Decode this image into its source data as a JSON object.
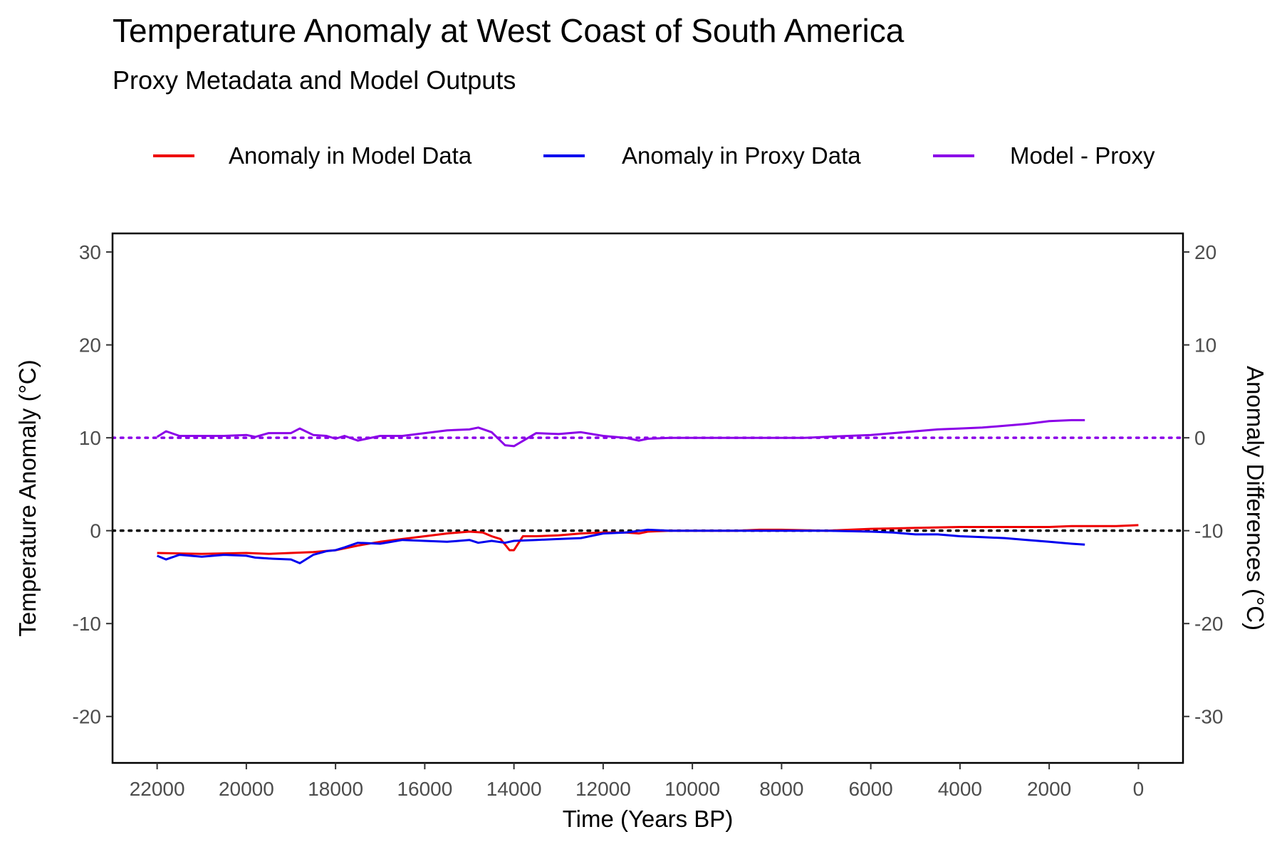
{
  "chart_data": {
    "type": "line",
    "title": "Temperature Anomaly at West Coast of South America",
    "subtitle": "Proxy Metadata and Model Outputs",
    "xlabel": "Time (Years BP)",
    "ylabel": "Temperature Anomaly (°C)",
    "y2label": "Anomaly Differences (°C)",
    "x_reversed": true,
    "xlim": [
      23000,
      -1000
    ],
    "ylim": [
      -25,
      32
    ],
    "y2lim": [
      -35,
      22
    ],
    "secondary_axis_offset": 10,
    "x_ticks": [
      22000,
      20000,
      18000,
      16000,
      14000,
      12000,
      10000,
      8000,
      6000,
      4000,
      2000,
      0
    ],
    "y_ticks": [
      30,
      20,
      10,
      0,
      -10,
      -20
    ],
    "y2_ticks": [
      20,
      10,
      0,
      -10,
      -20,
      -30
    ],
    "grid": false,
    "legend_position": "top",
    "reference_lines": [
      {
        "axis": "y",
        "value": 0,
        "style": "dotted",
        "color": "#000000"
      },
      {
        "axis": "y",
        "value": 10,
        "style": "dotted",
        "color": "#8B00E8"
      }
    ],
    "series": [
      {
        "name": "Anomaly in Model Data",
        "color": "#EE0000",
        "axis": "primary",
        "x": [
          22000,
          21000,
          20000,
          19500,
          19000,
          18500,
          18000,
          17500,
          17000,
          16500,
          16000,
          15500,
          15000,
          14700,
          14500,
          14300,
          14100,
          14000,
          13800,
          13500,
          13000,
          12500,
          12000,
          11500,
          11200,
          11000,
          10500,
          10000,
          9000,
          8500,
          8000,
          7000,
          6000,
          5000,
          4000,
          3000,
          2000,
          1500,
          1000,
          500,
          0
        ],
        "y": [
          -2.4,
          -2.5,
          -2.4,
          -2.5,
          -2.4,
          -2.3,
          -2.1,
          -1.6,
          -1.2,
          -0.9,
          -0.6,
          -0.3,
          -0.1,
          -0.2,
          -0.6,
          -0.9,
          -2.1,
          -2.1,
          -0.6,
          -0.6,
          -0.5,
          -0.3,
          -0.2,
          -0.2,
          -0.3,
          -0.1,
          0.0,
          0.0,
          0.0,
          0.1,
          0.1,
          0.0,
          0.2,
          0.3,
          0.4,
          0.4,
          0.4,
          0.5,
          0.5,
          0.5,
          0.6
        ]
      },
      {
        "name": "Anomaly in Proxy Data",
        "color": "#0000EE",
        "axis": "primary",
        "x": [
          22000,
          21800,
          21500,
          21000,
          20500,
          20000,
          19800,
          19500,
          19000,
          18800,
          18500,
          18200,
          18000,
          17800,
          17500,
          17000,
          16500,
          16000,
          15500,
          15000,
          14800,
          14500,
          14200,
          14000,
          13500,
          13000,
          12500,
          12000,
          11500,
          11000,
          10500,
          10000,
          9000,
          8000,
          7000,
          6000,
          5500,
          5000,
          4500,
          4000,
          3500,
          3000,
          2500,
          2000,
          1500,
          1200
        ],
        "y": [
          -2.7,
          -3.1,
          -2.6,
          -2.8,
          -2.6,
          -2.7,
          -2.9,
          -3.0,
          -3.1,
          -3.5,
          -2.6,
          -2.2,
          -2.1,
          -1.8,
          -1.3,
          -1.4,
          -1.0,
          -1.1,
          -1.2,
          -1.0,
          -1.3,
          -1.1,
          -1.3,
          -1.1,
          -1.0,
          -0.9,
          -0.8,
          -0.3,
          -0.2,
          0.1,
          0.0,
          0.0,
          0.0,
          0.0,
          0.0,
          -0.1,
          -0.2,
          -0.4,
          -0.4,
          -0.6,
          -0.7,
          -0.8,
          -1.0,
          -1.2,
          -1.4,
          -1.5
        ]
      },
      {
        "name": "Model - Proxy",
        "color": "#8B00E8",
        "axis": "secondary",
        "x": [
          22000,
          21800,
          21500,
          21000,
          20500,
          20000,
          19800,
          19500,
          19000,
          18800,
          18500,
          18200,
          18000,
          17800,
          17500,
          17000,
          16500,
          16000,
          15500,
          15000,
          14800,
          14500,
          14200,
          14000,
          13500,
          13000,
          12500,
          12000,
          11500,
          11200,
          11000,
          10500,
          10000,
          9000,
          8000,
          7500,
          7000,
          6500,
          6000,
          5500,
          5000,
          4500,
          4000,
          3500,
          3000,
          2500,
          2000,
          1500,
          1200
        ],
        "y": [
          0.1,
          0.7,
          0.2,
          0.2,
          0.2,
          0.3,
          0.1,
          0.5,
          0.5,
          1.0,
          0.3,
          0.2,
          -0.1,
          0.2,
          -0.3,
          0.2,
          0.2,
          0.5,
          0.8,
          0.9,
          1.1,
          0.6,
          -0.8,
          -0.9,
          0.5,
          0.4,
          0.6,
          0.2,
          0.0,
          -0.3,
          -0.1,
          0.0,
          0.0,
          0.0,
          0.0,
          0.0,
          0.1,
          0.2,
          0.3,
          0.5,
          0.7,
          0.9,
          1.0,
          1.1,
          1.3,
          1.5,
          1.8,
          1.9,
          1.9
        ]
      }
    ]
  }
}
